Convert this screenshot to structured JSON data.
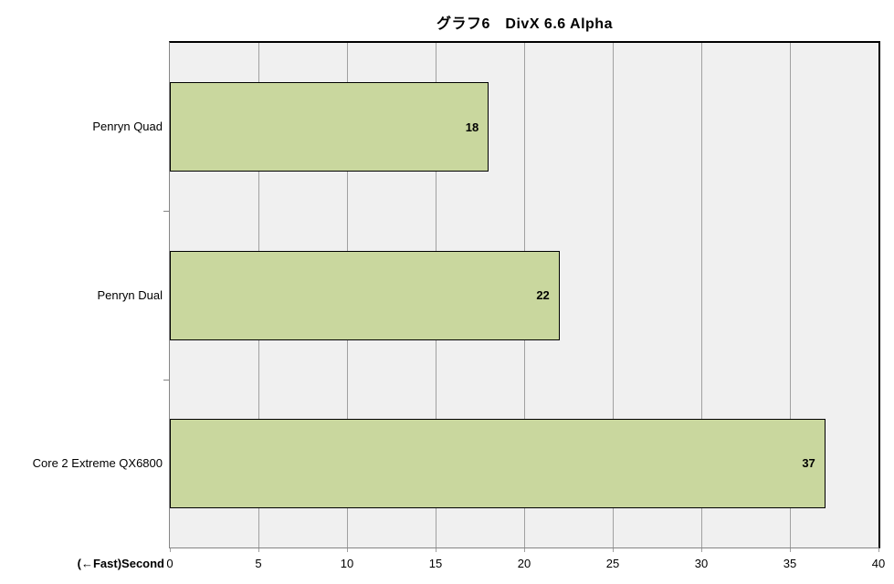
{
  "chart_data": {
    "type": "bar",
    "orientation": "horizontal",
    "title": "グラフ6　DivX 6.6 Alpha",
    "categories": [
      "Penryn Quad",
      "Penryn Dual",
      "Core 2 Extreme QX6800"
    ],
    "values": [
      18,
      22,
      37
    ],
    "value_labels": [
      "18",
      "22",
      "37"
    ],
    "xlabel": "(←Fast)Second",
    "xlim": [
      0,
      40
    ],
    "xticks": [
      0,
      5,
      10,
      15,
      20,
      25,
      30,
      35,
      40
    ],
    "grid": "vertical-major",
    "legend": "none",
    "colors": {
      "bar_fill": "#c9d79e",
      "bar_border": "#000000",
      "plot_bg": "#f0f0f0",
      "gridline": "#a0a0a0",
      "axis_line": "#858585",
      "plot_border": "#000000",
      "text": "#000000",
      "page_bg": "#ffffff"
    }
  }
}
